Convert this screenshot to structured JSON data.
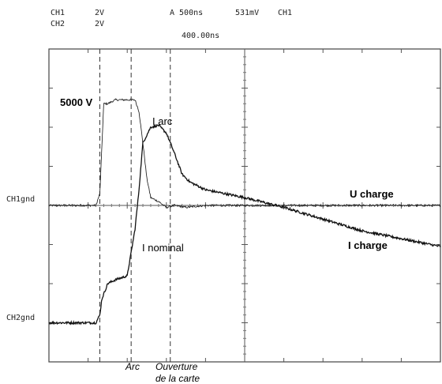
{
  "header": {
    "ch1_label": "CH1",
    "ch1_scale": "2V",
    "ch2_label": "CH2",
    "ch2_scale": "2V",
    "timebase": "A 500ns",
    "trigger_level": "531mV",
    "trigger_source": "CH1",
    "delay": "400.00ns"
  },
  "chart_data": {
    "type": "line",
    "title": "",
    "xlabel": "",
    "ylabel": "",
    "x_unit": "divisions",
    "y_unit": "divisions",
    "xlim": [
      0,
      10
    ],
    "ylim": [
      -4,
      4
    ],
    "grid": true,
    "ground_markers": {
      "ch1": "CH1gnd",
      "ch2": "CH2gnd"
    },
    "series": [
      {
        "name": "U charge",
        "x": [
          0,
          1.2,
          1.3,
          1.4,
          1.5,
          1.7,
          2.0,
          2.2,
          2.3,
          2.4,
          2.5,
          2.6,
          2.8,
          3.0,
          3.2,
          3.5,
          4.0,
          5.0,
          10.0
        ],
        "y": [
          0,
          0,
          0.3,
          2.6,
          2.6,
          2.7,
          2.7,
          2.7,
          2.4,
          1.6,
          0.7,
          0.2,
          0.1,
          -0.05,
          0,
          -0.05,
          0,
          0,
          0
        ]
      },
      {
        "name": "I charge",
        "x": [
          0,
          1.2,
          1.3,
          1.35,
          1.5,
          1.7,
          2.0,
          2.1,
          2.2,
          2.3,
          2.4,
          2.6,
          2.8,
          3.0,
          3.2,
          3.4,
          3.6,
          4.0,
          5.0,
          6.0,
          7.0,
          8.0,
          9.0,
          10.0
        ],
        "y": [
          -3.0,
          -3.0,
          -2.8,
          -2.4,
          -2.0,
          -1.9,
          -1.8,
          -1.2,
          -0.6,
          0.4,
          1.6,
          2.0,
          2.05,
          1.85,
          1.35,
          0.8,
          0.6,
          0.4,
          0.2,
          -0.05,
          -0.35,
          -0.65,
          -0.85,
          -1.05
        ]
      }
    ],
    "annotations": [
      {
        "text": "5000 V",
        "x": 0.45,
        "y": 2.65,
        "bold": true
      },
      {
        "text": "I arc",
        "x": 2.6,
        "y": 2.2,
        "bold": false
      },
      {
        "text": "U charge",
        "x": 7.7,
        "y": 0.25,
        "bold": true
      },
      {
        "text": "I charge",
        "x": 7.7,
        "y": -1.05,
        "bold": true
      },
      {
        "text": "I nominal",
        "x": 2.45,
        "y": -1.1,
        "bold": false
      }
    ],
    "markers": [
      {
        "x": 1.3,
        "label": "Arc"
      },
      {
        "x": 2.1,
        "label": ""
      },
      {
        "x": 3.1,
        "label": "Ouverture de la carte"
      }
    ]
  }
}
